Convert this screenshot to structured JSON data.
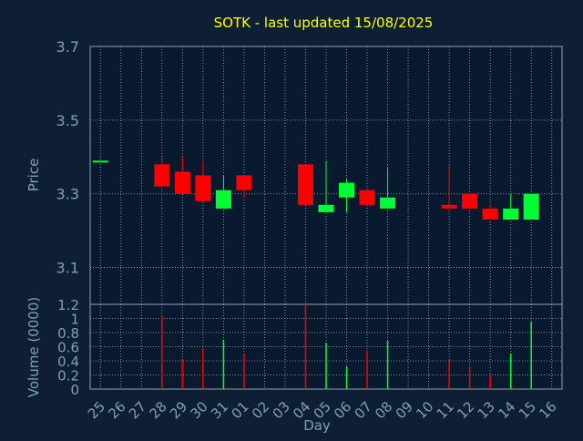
{
  "colors": {
    "background": "#0f1f33",
    "plot_background": "#0a1a2e",
    "title": "#ffff00",
    "axis_text": "#7f9fbf",
    "frame": "#8aa0bc",
    "grid": "#9fb3cc",
    "up": "#00ff33",
    "down": "#ff0000"
  },
  "chart_data": [
    {
      "type": "candlestick",
      "title": "SOTK - last updated 15/08/2025",
      "ylabel": "Price",
      "ylim": [
        3.0,
        3.7
      ],
      "yticks": [
        3.1,
        3.3,
        3.5,
        3.7
      ],
      "grid": true,
      "categories": [
        "25",
        "26",
        "27",
        "28",
        "29",
        "30",
        "31",
        "01",
        "02",
        "03",
        "04",
        "05",
        "06",
        "07",
        "08",
        "09",
        "10",
        "11",
        "12",
        "13",
        "14",
        "15",
        "16"
      ],
      "candles": [
        {
          "day": "25",
          "open": 3.39,
          "high": 3.39,
          "low": 3.39,
          "close": 3.39
        },
        {
          "day": "28",
          "open": 3.38,
          "high": 3.4,
          "low": 3.32,
          "close": 3.32
        },
        {
          "day": "29",
          "open": 3.36,
          "high": 3.4,
          "low": 3.3,
          "close": 3.3
        },
        {
          "day": "30",
          "open": 3.35,
          "high": 3.39,
          "low": 3.28,
          "close": 3.28
        },
        {
          "day": "31",
          "open": 3.26,
          "high": 3.35,
          "low": 3.26,
          "close": 3.31
        },
        {
          "day": "01",
          "open": 3.35,
          "high": 3.35,
          "low": 3.29,
          "close": 3.31
        },
        {
          "day": "04",
          "open": 3.38,
          "high": 3.38,
          "low": 3.27,
          "close": 3.27
        },
        {
          "day": "05",
          "open": 3.25,
          "high": 3.39,
          "low": 3.25,
          "close": 3.27
        },
        {
          "day": "06",
          "open": 3.29,
          "high": 3.34,
          "low": 3.25,
          "close": 3.33
        },
        {
          "day": "07",
          "open": 3.31,
          "high": 3.31,
          "low": 3.27,
          "close": 3.27
        },
        {
          "day": "08",
          "open": 3.26,
          "high": 3.37,
          "low": 3.26,
          "close": 3.29
        },
        {
          "day": "11",
          "open": 3.27,
          "high": 3.38,
          "low": 3.26,
          "close": 3.26
        },
        {
          "day": "12",
          "open": 3.3,
          "high": 3.3,
          "low": 3.26,
          "close": 3.26
        },
        {
          "day": "13",
          "open": 3.26,
          "high": 3.27,
          "low": 3.23,
          "close": 3.23
        },
        {
          "day": "14",
          "open": 3.23,
          "high": 3.3,
          "low": 3.23,
          "close": 3.26
        },
        {
          "day": "15",
          "open": 3.23,
          "high": 3.3,
          "low": 3.23,
          "close": 3.3
        }
      ]
    },
    {
      "type": "bar",
      "ylabel": "Volume (0000)",
      "xlabel": "Day",
      "ylim": [
        0,
        1.2
      ],
      "ytick_labels": [
        "0",
        "0.2",
        "0.4",
        "0.6",
        "0.8",
        "1",
        "1.2"
      ],
      "yticks": [
        0,
        0.2,
        0.4,
        0.6,
        0.8,
        1.0,
        1.2
      ],
      "grid": true,
      "categories": [
        "25",
        "26",
        "27",
        "28",
        "29",
        "30",
        "31",
        "01",
        "02",
        "03",
        "04",
        "05",
        "06",
        "07",
        "08",
        "09",
        "10",
        "11",
        "12",
        "13",
        "14",
        "15",
        "16"
      ],
      "bars": [
        {
          "day": "28",
          "value": 1.05,
          "direction": "down"
        },
        {
          "day": "29",
          "value": 0.42,
          "direction": "down"
        },
        {
          "day": "30",
          "value": 0.58,
          "direction": "down"
        },
        {
          "day": "31",
          "value": 0.7,
          "direction": "up"
        },
        {
          "day": "01",
          "value": 0.5,
          "direction": "down"
        },
        {
          "day": "04",
          "value": 1.2,
          "direction": "down"
        },
        {
          "day": "05",
          "value": 0.65,
          "direction": "up"
        },
        {
          "day": "06",
          "value": 0.32,
          "direction": "up"
        },
        {
          "day": "07",
          "value": 0.55,
          "direction": "down"
        },
        {
          "day": "08",
          "value": 0.68,
          "direction": "up"
        },
        {
          "day": "11",
          "value": 0.42,
          "direction": "down"
        },
        {
          "day": "12",
          "value": 0.3,
          "direction": "down"
        },
        {
          "day": "13",
          "value": 0.2,
          "direction": "down"
        },
        {
          "day": "14",
          "value": 0.5,
          "direction": "up"
        },
        {
          "day": "15",
          "value": 0.95,
          "direction": "up"
        }
      ]
    }
  ]
}
